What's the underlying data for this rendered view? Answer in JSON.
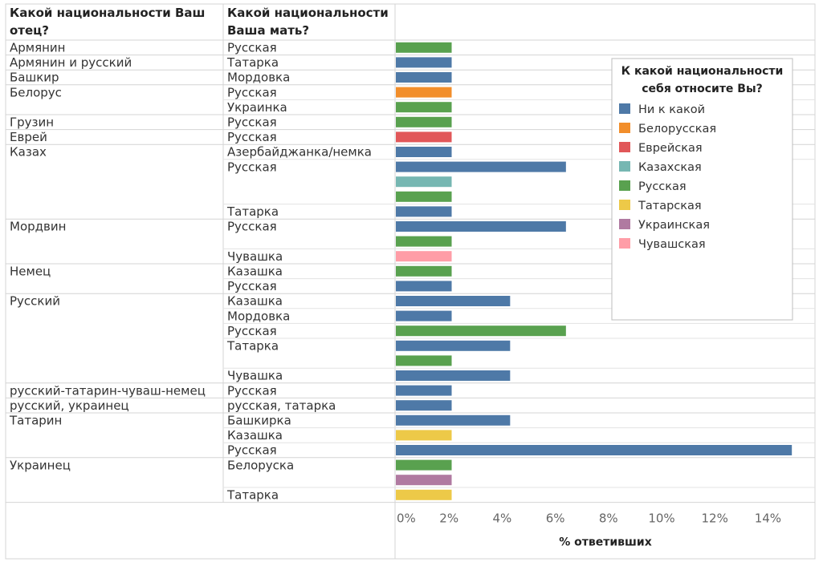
{
  "chart_data": {
    "type": "bar",
    "orientation": "horizontal",
    "col_headers": {
      "father": "Какой национальности Ваш отец?",
      "mother": "Какой национальности Ваша мать?"
    },
    "xlabel": "% ответивших",
    "xlim": [
      0,
      15
    ],
    "x_ticks": [
      "0%",
      "2%",
      "4%",
      "6%",
      "8%",
      "10%",
      "12%",
      "14%"
    ],
    "x_tick_values": [
      0,
      2,
      4,
      6,
      8,
      10,
      12,
      14
    ],
    "grid": false,
    "legend": {
      "title": "К какой национальности себя относите Вы?",
      "placement": "right",
      "items": [
        {
          "label": "Ни к какой",
          "color": "#4e79a7"
        },
        {
          "label": "Белорусская",
          "color": "#f28e2b"
        },
        {
          "label": "Еврейская",
          "color": "#e15759"
        },
        {
          "label": "Казахская",
          "color": "#76b7b2"
        },
        {
          "label": "Русская",
          "color": "#59a14f"
        },
        {
          "label": "Татарская",
          "color": "#edc948"
        },
        {
          "label": "Украинская",
          "color": "#b07aa1"
        },
        {
          "label": "Чувашская",
          "color": "#ff9da7"
        }
      ]
    },
    "groups": [
      {
        "father": "Армянин",
        "mothers": [
          {
            "mother": "Русская",
            "bars": [
              {
                "identity": "Русская",
                "value": 2.1
              }
            ]
          }
        ]
      },
      {
        "father": "Армянин и русский",
        "mothers": [
          {
            "mother": "Татарка",
            "bars": [
              {
                "identity": "Ни к какой",
                "value": 2.1
              }
            ]
          }
        ]
      },
      {
        "father": "Башкир",
        "mothers": [
          {
            "mother": "Мордовка",
            "bars": [
              {
                "identity": "Ни к какой",
                "value": 2.1
              }
            ]
          }
        ]
      },
      {
        "father": "Белорус",
        "mothers": [
          {
            "mother": "Русская",
            "bars": [
              {
                "identity": "Белорусская",
                "value": 2.1
              }
            ]
          },
          {
            "mother": "Украинка",
            "bars": [
              {
                "identity": "Русская",
                "value": 2.1
              }
            ]
          }
        ]
      },
      {
        "father": "Грузин",
        "mothers": [
          {
            "mother": "Русская",
            "bars": [
              {
                "identity": "Русская",
                "value": 2.1
              }
            ]
          }
        ]
      },
      {
        "father": "Еврей",
        "mothers": [
          {
            "mother": "Русская",
            "bars": [
              {
                "identity": "Еврейская",
                "value": 2.1
              }
            ]
          }
        ]
      },
      {
        "father": "Казах",
        "mothers": [
          {
            "mother": "Азербайджанка/немка",
            "bars": [
              {
                "identity": "Ни к какой",
                "value": 2.1
              }
            ]
          },
          {
            "mother": "Русская",
            "bars": [
              {
                "identity": "Ни к какой",
                "value": 6.4
              },
              {
                "identity": "Казахская",
                "value": 2.1
              },
              {
                "identity": "Русская",
                "value": 2.1
              }
            ]
          },
          {
            "mother": "Татарка",
            "bars": [
              {
                "identity": "Ни к какой",
                "value": 2.1
              }
            ]
          }
        ]
      },
      {
        "father": "Мордвин",
        "mothers": [
          {
            "mother": "Русская",
            "bars": [
              {
                "identity": "Ни к какой",
                "value": 6.4
              },
              {
                "identity": "Русская",
                "value": 2.1
              }
            ]
          },
          {
            "mother": "Чувашка",
            "bars": [
              {
                "identity": "Чувашская",
                "value": 2.1
              }
            ]
          }
        ]
      },
      {
        "father": "Немец",
        "mothers": [
          {
            "mother": "Казашка",
            "bars": [
              {
                "identity": "Русская",
                "value": 2.1
              }
            ]
          },
          {
            "mother": "Русская",
            "bars": [
              {
                "identity": "Ни к какой",
                "value": 2.1
              }
            ]
          }
        ]
      },
      {
        "father": "Русский",
        "mothers": [
          {
            "mother": "Казашка",
            "bars": [
              {
                "identity": "Ни к какой",
                "value": 4.3
              }
            ]
          },
          {
            "mother": "Мордовка",
            "bars": [
              {
                "identity": "Ни к какой",
                "value": 2.1
              }
            ]
          },
          {
            "mother": "Русская",
            "bars": [
              {
                "identity": "Русская",
                "value": 6.4
              }
            ]
          },
          {
            "mother": "Татарка",
            "bars": [
              {
                "identity": "Ни к какой",
                "value": 4.3
              },
              {
                "identity": "Русская",
                "value": 2.1
              }
            ]
          },
          {
            "mother": "Чувашка",
            "bars": [
              {
                "identity": "Ни к какой",
                "value": 4.3
              }
            ]
          }
        ]
      },
      {
        "father": "русский-татарин-чуваш-немец",
        "mothers": [
          {
            "mother": "Русская",
            "bars": [
              {
                "identity": "Ни к какой",
                "value": 2.1
              }
            ]
          }
        ]
      },
      {
        "father": "русский, украинец",
        "mothers": [
          {
            "mother": "русская, татарка",
            "bars": [
              {
                "identity": "Ни к какой",
                "value": 2.1
              }
            ]
          }
        ]
      },
      {
        "father": "Татарин",
        "mothers": [
          {
            "mother": "Башкирка",
            "bars": [
              {
                "identity": "Ни к какой",
                "value": 4.3
              }
            ]
          },
          {
            "mother": "Казашка",
            "bars": [
              {
                "identity": "Татарская",
                "value": 2.1
              }
            ]
          },
          {
            "mother": "Русская",
            "bars": [
              {
                "identity": "Ни к какой",
                "value": 14.9
              }
            ]
          }
        ]
      },
      {
        "father": "Украинец",
        "mothers": [
          {
            "mother": "Белоруска",
            "bars": [
              {
                "identity": "Русская",
                "value": 2.1
              },
              {
                "identity": "Украинская",
                "value": 2.1
              }
            ]
          },
          {
            "mother": "Татарка",
            "bars": [
              {
                "identity": "Татарская",
                "value": 2.1
              }
            ]
          }
        ]
      }
    ]
  }
}
